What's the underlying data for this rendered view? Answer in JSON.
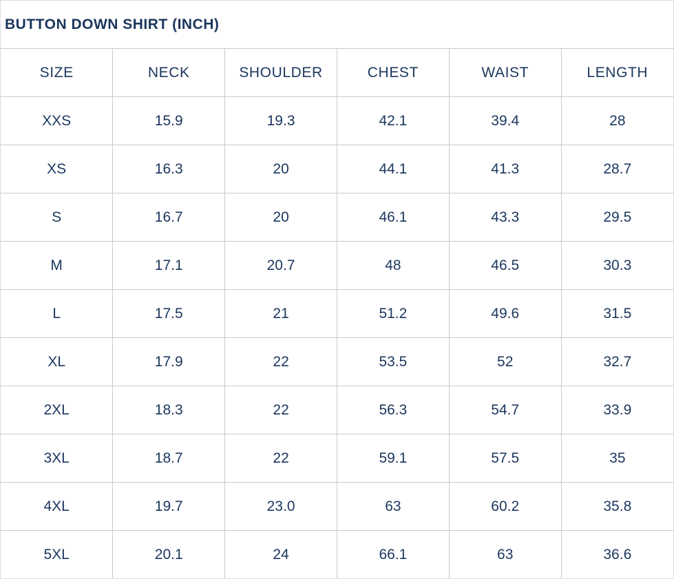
{
  "title": "BUTTON DOWN SHIRT (INCH)",
  "headers": [
    "SIZE",
    "NECK",
    "SHOULDER",
    "CHEST",
    "WAIST",
    "LENGTH"
  ],
  "rows": [
    [
      "XXS",
      "15.9",
      "19.3",
      "42.1",
      "39.4",
      "28"
    ],
    [
      "XS",
      "16.3",
      "20",
      "44.1",
      "41.3",
      "28.7"
    ],
    [
      "S",
      "16.7",
      "20",
      "46.1",
      "43.3",
      "29.5"
    ],
    [
      "M",
      "17.1",
      "20.7",
      "48",
      "46.5",
      "30.3"
    ],
    [
      "L",
      "17.5",
      "21",
      "51.2",
      "49.6",
      "31.5"
    ],
    [
      "XL",
      "17.9",
      "22",
      "53.5",
      "52",
      "32.7"
    ],
    [
      "2XL",
      "18.3",
      "22",
      "56.3",
      "54.7",
      "33.9"
    ],
    [
      "3XL",
      "18.7",
      "22",
      "59.1",
      "57.5",
      "35"
    ],
    [
      "4XL",
      "19.7",
      "23.0",
      "63",
      "60.2",
      "35.8"
    ],
    [
      "5XL",
      "20.1",
      "24",
      "66.1",
      "63",
      "36.6"
    ]
  ],
  "colors": {
    "text": "#1b365d",
    "border": "#c8c8c8"
  }
}
